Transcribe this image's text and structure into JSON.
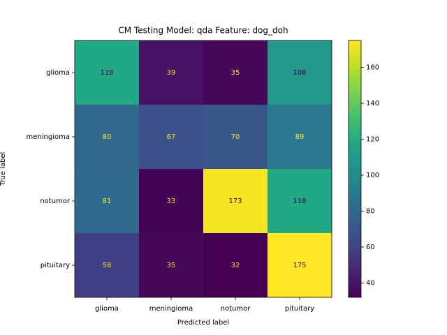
{
  "chart_data": {
    "type": "heatmap",
    "title": "CM Testing Model: qda Feature: dog_doh",
    "xlabel": "Predicted label",
    "ylabel": "True label",
    "x_categories": [
      "glioma",
      "meningioma",
      "notumor",
      "pituitary"
    ],
    "y_categories": [
      "glioma",
      "meningioma",
      "notumor",
      "pituitary"
    ],
    "values": [
      [
        118,
        39,
        35,
        108
      ],
      [
        80,
        67,
        70,
        89
      ],
      [
        81,
        33,
        173,
        118
      ],
      [
        58,
        35,
        32,
        175
      ]
    ],
    "colormap": "viridis",
    "zlim": [
      32,
      175
    ],
    "zticks": [
      40,
      60,
      80,
      100,
      120,
      140,
      160
    ]
  }
}
